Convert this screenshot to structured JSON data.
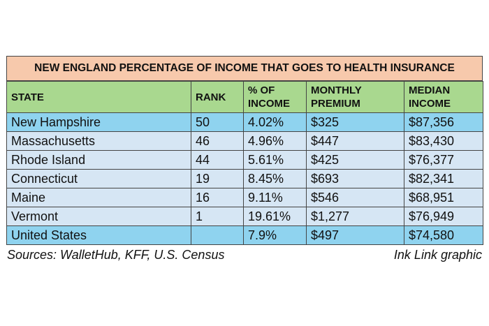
{
  "title": "NEW ENGLAND PERCENTAGE OF INCOME THAT GOES TO HEALTH INSURANCE",
  "columns": {
    "state": "STATE",
    "rank": "RANK",
    "pct_income": "% OF INCOME",
    "monthly_premium": "MONTHLY PREMIUM",
    "median_income": "MEDIAN INCOME"
  },
  "rows": [
    {
      "state": "New Hampshire",
      "rank": "50",
      "pct": "4.02%",
      "premium": "$325",
      "income": "$87,356"
    },
    {
      "state": "Massachusetts",
      "rank": "46",
      "pct": "4.96%",
      "premium": "$447",
      "income": "$83,430"
    },
    {
      "state": "Rhode Island",
      "rank": "44",
      "pct": "5.61%",
      "premium": "$425",
      "income": "$76,377"
    },
    {
      "state": "Connecticut",
      "rank": "19",
      "pct": "8.45%",
      "premium": "$693",
      "income": "$82,341"
    },
    {
      "state": "Maine",
      "rank": "16",
      "pct": "9.11%",
      "premium": "$546",
      "income": "$68,951"
    },
    {
      "state": "Vermont",
      "rank": "1",
      "pct": "19.61%",
      "premium": "$1,277",
      "income": "$76,949"
    },
    {
      "state": "United States",
      "rank": "",
      "pct": "7.9%",
      "premium": "$497",
      "income": "$74,580"
    }
  ],
  "sources": "Sources: WalletHub, KFF, U.S. Census",
  "credit": "Ink Link graphic",
  "colors": {
    "title_bg": "#f7c9ac",
    "header_bg": "#a9d88f",
    "highlight_row_bg": "#8fd3ef",
    "row_bg": "#d6e6f4"
  }
}
